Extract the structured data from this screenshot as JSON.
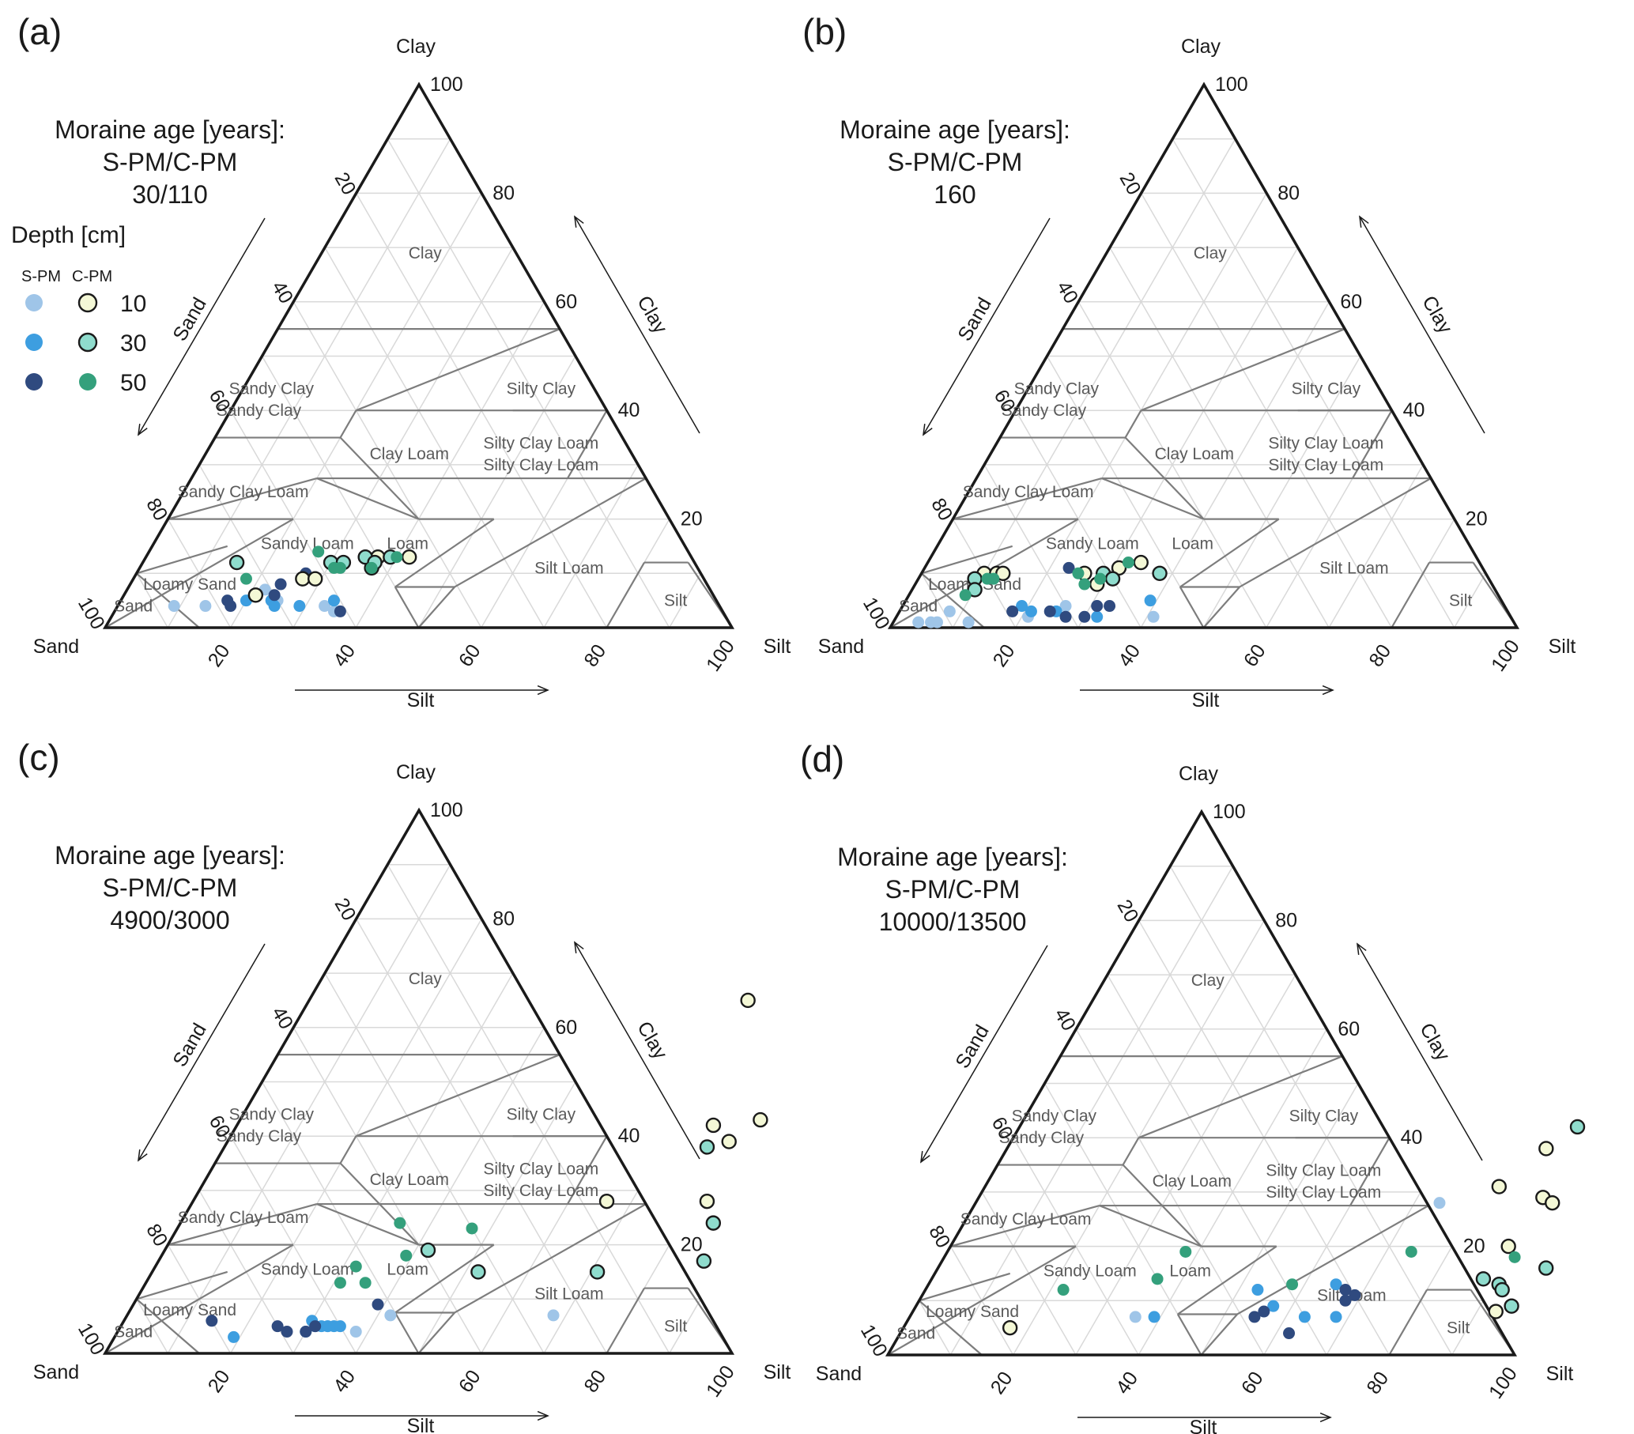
{
  "figure": {
    "depth_legend": {
      "title": "Depth [cm]",
      "group_labels": [
        "S-PM",
        "C-PM"
      ],
      "rows": [
        {
          "depth": "10",
          "spm_color": "#9fc5e8",
          "cpm_color": "#f4f8d6"
        },
        {
          "depth": "30",
          "spm_color": "#3d9ee0",
          "cpm_color": "#8fdccd"
        },
        {
          "depth": "50",
          "spm_color": "#2f4a7f",
          "cpm_color": "#34a07c"
        }
      ]
    },
    "colors": {
      "s10": "#9fc5e8",
      "s30": "#3d9ee0",
      "s50": "#2f4a7f",
      "c10": "#f4f8d6",
      "c30": "#8fdccd",
      "c50": "#34a07c",
      "axis": "#1a1a1a",
      "boundary": "#7d7d7d",
      "grid": "#d9d9d9"
    }
  },
  "panels": [
    {
      "label": "(a)",
      "info": [
        "Moraine age [years]:",
        "S-PM/C-PM",
        "30/110"
      ],
      "show_legend": true
    },
    {
      "label": "(b)",
      "info": [
        "Moraine age [years]:",
        "S-PM/C-PM",
        "160"
      ],
      "show_legend": false
    },
    {
      "label": "(c)",
      "info": [
        "Moraine age [years]:",
        "S-PM/C-PM",
        "4900/3000"
      ],
      "show_legend": false
    },
    {
      "label": "(d)",
      "info": [
        "Moraine age [years]:",
        "S-PM/C-PM",
        "10000/13500"
      ],
      "show_legend": false
    }
  ],
  "chart_data": [
    {
      "type": "scatter",
      "subtype": "ternary",
      "panel": "(a)",
      "axes": {
        "top": "Clay",
        "left": "Sand",
        "right": "Silt"
      },
      "axis_titles": {
        "sand": "Sand",
        "silt": "Silt",
        "clay": "Clay"
      },
      "ticks": [
        "20",
        "40",
        "60",
        "80",
        "100"
      ],
      "classes": [
        "Clay",
        "Sandy Clay",
        "Silty Clay",
        "Clay Loam",
        "Silty Clay Loam",
        "Sandy Clay Loam",
        "Sandy Loam",
        "Loam",
        "Silt Loam",
        "Loamy Sand",
        "Sand",
        "Silt"
      ],
      "series": [
        {
          "name": "S-PM 10 cm",
          "group": "s10",
          "points": [
            [
              9,
              4
            ],
            [
              14,
              4
            ],
            [
              22,
              7
            ],
            [
              25,
              5
            ],
            [
              33,
              4
            ],
            [
              35,
              3
            ]
          ]
        },
        {
          "name": "S-PM 30 cm",
          "group": "s30",
          "points": [
            [
              20,
              5
            ],
            [
              24,
              5
            ],
            [
              29,
              4
            ],
            [
              34,
              5
            ],
            [
              25,
              4
            ]
          ]
        },
        {
          "name": "S-PM 50 cm",
          "group": "s50",
          "points": [
            [
              17,
              5
            ],
            [
              18,
              4
            ],
            [
              27,
              10
            ],
            [
              24,
              8
            ],
            [
              36,
              3
            ],
            [
              24,
              6
            ]
          ]
        },
        {
          "name": "C-PM 10 cm",
          "group": "c10",
          "points": [
            [
              21,
              6
            ],
            [
              27,
              9
            ],
            [
              29,
              9
            ],
            [
              37,
              13
            ],
            [
              37,
              11
            ],
            [
              42,
              13
            ]
          ]
        },
        {
          "name": "C-PM 30 cm",
          "group": "c30",
          "points": [
            [
              15,
              12
            ],
            [
              30,
              12
            ],
            [
              32,
              12
            ],
            [
              35,
              13
            ],
            [
              39,
              13
            ],
            [
              37,
              12
            ]
          ]
        },
        {
          "name": "C-PM 50 cm",
          "group": "c50",
          "points": [
            [
              27,
              14
            ],
            [
              18,
              9
            ],
            [
              31,
              11
            ],
            [
              32,
              11
            ],
            [
              40,
              13
            ],
            [
              37,
              11
            ]
          ]
        }
      ]
    },
    {
      "type": "scatter",
      "subtype": "ternary",
      "panel": "(b)",
      "axes": {
        "top": "Clay",
        "left": "Sand",
        "right": "Silt"
      },
      "axis_titles": {
        "sand": "Sand",
        "silt": "Silt",
        "clay": "Clay"
      },
      "ticks": [
        "20",
        "40",
        "60",
        "80",
        "100"
      ],
      "classes": [
        "Clay",
        "Sandy Clay",
        "Silty Clay",
        "Clay Loam",
        "Silty Clay Loam",
        "Sandy Clay Loam",
        "Sandy Loam",
        "Loam",
        "Silt Loam",
        "Loamy Sand",
        "Sand",
        "Silt"
      ],
      "series": [
        {
          "name": "S-PM 10 cm",
          "group": "s10",
          "points": [
            [
              4,
              1
            ],
            [
              6,
              1
            ],
            [
              7,
              1
            ],
            [
              8,
              3
            ],
            [
              12,
              1
            ],
            [
              21,
              2
            ],
            [
              26,
              4
            ],
            [
              31,
              4
            ],
            [
              41,
              2
            ]
          ]
        },
        {
          "name": "S-PM 30 cm",
          "group": "s30",
          "points": [
            [
              19,
              4
            ],
            [
              21,
              3
            ],
            [
              25,
              3
            ],
            [
              32,
              2
            ],
            [
              39,
              5
            ]
          ]
        },
        {
          "name": "S-PM 50 cm",
          "group": "s50",
          "points": [
            [
              18,
              3
            ],
            [
              24,
              3
            ],
            [
              27,
              2
            ],
            [
              30,
              2
            ],
            [
              31,
              4
            ],
            [
              33,
              4
            ],
            [
              23,
              11
            ]
          ]
        },
        {
          "name": "C-PM 10 cm",
          "group": "c10",
          "points": [
            [
              10,
              10
            ],
            [
              12,
              10
            ],
            [
              13,
              10
            ],
            [
              26,
              10
            ],
            [
              29,
              8
            ],
            [
              31,
              11
            ],
            [
              34,
              12
            ]
          ]
        },
        {
          "name": "C-PM 30 cm",
          "group": "c30",
          "points": [
            [
              9,
              9
            ],
            [
              10,
              7
            ],
            [
              29,
              10
            ],
            [
              31,
              9
            ],
            [
              38,
              10
            ]
          ]
        },
        {
          "name": "C-PM 50 cm",
          "group": "c50",
          "points": [
            [
              9,
              6
            ],
            [
              11,
              9
            ],
            [
              12,
              9
            ],
            [
              25,
              10
            ],
            [
              27,
              8
            ],
            [
              32,
              12
            ],
            [
              29,
              9
            ]
          ]
        }
      ]
    },
    {
      "type": "scatter",
      "subtype": "ternary",
      "panel": "(c)",
      "axes": {
        "top": "Clay",
        "left": "Sand",
        "right": "Silt"
      },
      "axis_titles": {
        "sand": "Sand",
        "silt": "Silt",
        "clay": "Clay"
      },
      "ticks": [
        "20",
        "40",
        "60",
        "80",
        "100"
      ],
      "classes": [
        "Clay",
        "Sandy Clay",
        "Silty Clay",
        "Clay Loam",
        "Silty Clay Loam",
        "Sandy Clay Loam",
        "Sandy Loam",
        "Loam",
        "Silt Loam",
        "Loamy Sand",
        "Sand",
        "Silt"
      ],
      "series": [
        {
          "name": "S-PM 10 cm",
          "group": "s10",
          "points": [
            [
              33,
              5
            ],
            [
              38,
              4
            ],
            [
              42,
              7
            ],
            [
              68,
              7
            ]
          ]
        },
        {
          "name": "S-PM 30 cm",
          "group": "s30",
          "points": [
            [
              19,
              3
            ],
            [
              30,
              6
            ],
            [
              30,
              4
            ],
            [
              31,
              5
            ],
            [
              32,
              5
            ],
            [
              33,
              5
            ],
            [
              34,
              5
            ],
            [
              35,
              5
            ]
          ]
        },
        {
          "name": "S-PM 50 cm",
          "group": "s50",
          "points": [
            [
              14,
              6
            ],
            [
              25,
              5
            ],
            [
              27,
              4
            ],
            [
              30,
              4
            ],
            [
              31,
              5
            ],
            [
              39,
              9
            ]
          ]
        },
        {
          "name": "C-PM 10 cm",
          "group": "c10",
          "points": [
            [
              70,
              65
            ],
            [
              76,
              42
            ],
            [
              83,
              43
            ],
            [
              80,
              39
            ],
            [
              66,
              28
            ],
            [
              82,
              28
            ]
          ]
        },
        {
          "name": "C-PM 30 cm",
          "group": "c30",
          "points": [
            [
              77,
              38
            ],
            [
              42,
              19
            ],
            [
              71,
              15
            ],
            [
              85,
              24
            ],
            [
              87,
              17
            ],
            [
              52,
              15
            ]
          ]
        },
        {
          "name": "C-PM 50 cm",
          "group": "c50",
          "points": [
            [
              35,
              24
            ],
            [
              39,
              18
            ],
            [
              47,
              23
            ],
            [
              32,
              16
            ],
            [
              31,
              13
            ],
            [
              35,
              13
            ]
          ]
        }
      ]
    },
    {
      "type": "scatter",
      "subtype": "ternary",
      "panel": "(d)",
      "axes": {
        "top": "Clay",
        "left": "Sand",
        "right": "Silt"
      },
      "axis_titles": {
        "sand": "Sand",
        "silt": "Silt",
        "clay": "Clay"
      },
      "ticks": [
        "20",
        "40",
        "60",
        "80",
        "100"
      ],
      "classes": [
        "Clay",
        "Sandy Clay",
        "Silty Clay",
        "Clay Loam",
        "Silty Clay Loam",
        "Sandy Clay Loam",
        "Sandy Loam",
        "Loam",
        "Silt Loam",
        "Loamy Sand",
        "Sand",
        "Silt"
      ],
      "series": [
        {
          "name": "S-PM 10 cm",
          "group": "s10",
          "points": [
            [
              36,
              7
            ],
            [
              74,
              28
            ]
          ]
        },
        {
          "name": "S-PM 30 cm",
          "group": "s30",
          "points": [
            [
              39,
              7
            ],
            [
              53,
              12
            ],
            [
              57,
              9
            ],
            [
              65,
              13
            ],
            [
              63,
              7
            ],
            [
              68,
              7
            ]
          ]
        },
        {
          "name": "S-PM 50 cm",
          "group": "s50",
          "points": [
            [
              55,
              7
            ],
            [
              56,
              8
            ],
            [
              62,
              4
            ],
            [
              67,
              12
            ],
            [
              68,
              10
            ],
            [
              69,
              11
            ]
          ]
        },
        {
          "name": "C-PM 10 cm",
          "group": "c10",
          "points": [
            [
              86,
              38
            ],
            [
              82,
              31
            ],
            [
              90,
              29
            ],
            [
              92,
              28
            ],
            [
              89,
              20
            ],
            [
              93,
              8
            ],
            [
              17,
              5
            ]
          ]
        },
        {
          "name": "C-PM 30 cm",
          "group": "c30",
          "points": [
            [
              89,
              42
            ],
            [
              88,
              14
            ],
            [
              91,
              13
            ],
            [
              92,
              12
            ],
            [
              95,
              9
            ],
            [
              97,
              16
            ]
          ]
        },
        {
          "name": "C-PM 50 cm",
          "group": "c50",
          "points": [
            [
              22,
              12
            ],
            [
              38,
              19
            ],
            [
              36,
              14
            ],
            [
              58,
              13
            ],
            [
              74,
              19
            ],
            [
              91,
              18
            ]
          ]
        }
      ]
    }
  ]
}
